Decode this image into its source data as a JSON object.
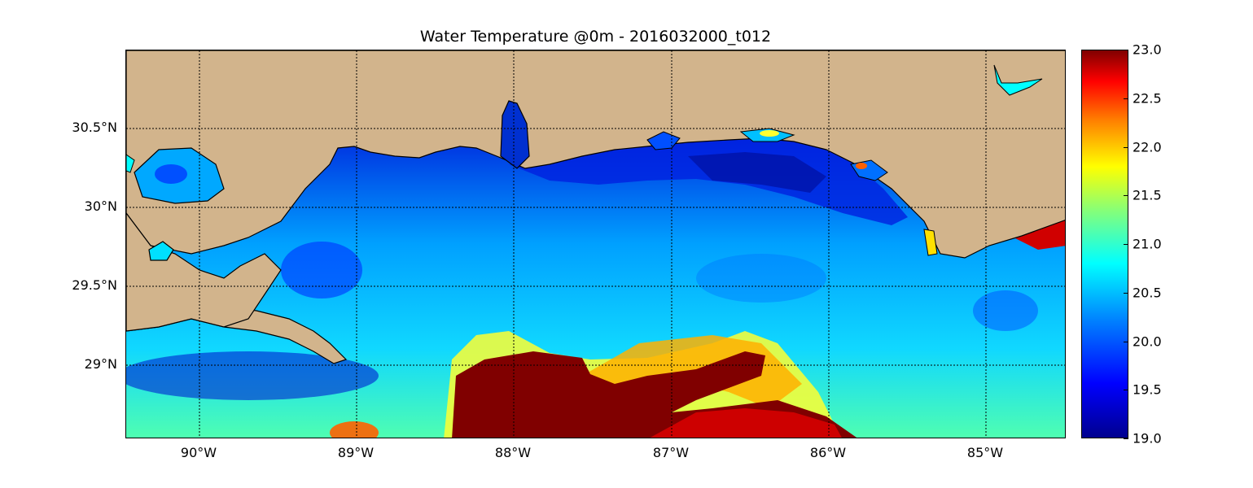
{
  "title": "Water Temperature @0m - 2016032000_t012",
  "colors": {
    "land": "#d2b48c",
    "coast": "#000000",
    "gridline": "#000000",
    "warm_core": "#800000",
    "cool_core": "#00008f"
  },
  "map": {
    "lat_range": [
      28.55,
      31.0
    ],
    "lon_range": [
      -90.47,
      -84.5
    ],
    "gridlines": "dotted",
    "lat_ticks": [
      "30.5°N",
      "30°N",
      "29.5°N",
      "29°N"
    ],
    "lon_ticks": [
      "90°W",
      "89°W",
      "88°W",
      "87°W",
      "86°W",
      "85°W"
    ]
  },
  "colorbar": {
    "colormap": "jet",
    "min": 19.0,
    "max": 23.0,
    "tick_labels": [
      "23.0",
      "22.5",
      "22.0",
      "21.5",
      "21.0",
      "20.5",
      "20.0",
      "19.5",
      "19.0"
    ]
  }
}
